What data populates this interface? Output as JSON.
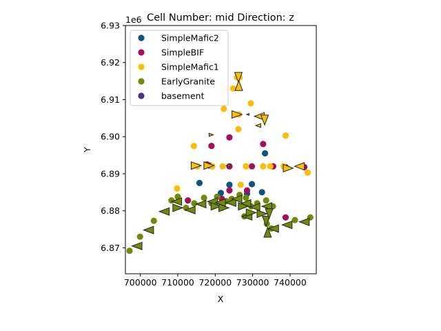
{
  "chart_data": {
    "type": "scatter",
    "title": "Cell Number: mid Direction: z",
    "xlabel": "X",
    "ylabel": "Y",
    "offset_text": "1e6",
    "xlim": [
      696000,
      747000
    ],
    "ylim": [
      6.863,
      6.93
    ],
    "xticks": [
      700000,
      710000,
      720000,
      730000,
      740000
    ],
    "xtick_labels": [
      "700000",
      "710000",
      "720000",
      "730000",
      "740000"
    ],
    "yticks": [
      6.87,
      6.88,
      6.89,
      6.9,
      6.91,
      6.92,
      6.93
    ],
    "ytick_labels": [
      "6.87",
      "6.88",
      "6.89",
      "6.90",
      "6.91",
      "6.92",
      "6.93"
    ],
    "grid": false,
    "legend_position": "upper-left",
    "series": [
      {
        "name": "SimpleMafic2",
        "color": "#0d5380",
        "points": [
          [
            715800,
            6.8875
          ],
          [
            723800,
            6.887
          ],
          [
            729800,
            6.8872
          ],
          [
            732500,
            6.885
          ],
          [
            733300,
            6.8955
          ],
          [
            721500,
            6.8848
          ],
          [
            728500,
            6.8846
          ],
          [
            718500,
            6.8922
          ]
        ]
      },
      {
        "name": "SimpleBIF",
        "color": "#a3105a",
        "points": [
          [
            712700,
            6.8828
          ],
          [
            717800,
            6.8925
          ],
          [
            719000,
            6.8975
          ],
          [
            723800,
            6.8998
          ],
          [
            723800,
            6.8855
          ],
          [
            728500,
            6.8855
          ],
          [
            729800,
            6.892
          ],
          [
            735500,
            6.892
          ],
          [
            738800,
            6.8918
          ],
          [
            738800,
            6.8782
          ],
          [
            743800,
            6.8918
          ],
          [
            732800,
            6.898
          ],
          [
            723800,
            6.892
          ],
          [
            721800,
            6.8832
          ]
        ]
      },
      {
        "name": "SimpleMafic1",
        "color": "#fbbd07",
        "points": [
          [
            709800,
            6.886
          ],
          [
            714300,
            6.8975
          ],
          [
            715200,
            6.892
          ],
          [
            719200,
            6.892
          ],
          [
            722000,
            6.892
          ],
          [
            722300,
            6.9075
          ],
          [
            724800,
            6.913
          ],
          [
            725800,
            6.916
          ],
          [
            726200,
            6.902
          ],
          [
            726300,
            6.906
          ],
          [
            726800,
            6.887
          ],
          [
            728200,
            6.892
          ],
          [
            729500,
            6.909
          ],
          [
            732800,
            6.892
          ],
          [
            734700,
            6.892
          ],
          [
            738800,
            6.9003
          ],
          [
            744700,
            6.8903
          ],
          [
            726500,
            6.916
          ],
          [
            738300,
            6.892
          ]
        ]
      },
      {
        "name": "EarlyGranite",
        "color": "#728a0a",
        "points": [
          [
            697100,
            6.8692
          ],
          [
            699900,
            6.873
          ],
          [
            703600,
            6.8773
          ],
          [
            708300,
            6.8828
          ],
          [
            710000,
            6.8838
          ],
          [
            712200,
            6.8808
          ],
          [
            714400,
            6.882
          ],
          [
            717000,
            6.8835
          ],
          [
            719000,
            6.882
          ],
          [
            720500,
            6.8838
          ],
          [
            721700,
            6.8808
          ],
          [
            723000,
            6.8826
          ],
          [
            724400,
            6.8832
          ],
          [
            726500,
            6.8843
          ],
          [
            728200,
            6.8835
          ],
          [
            729600,
            6.8812
          ],
          [
            731200,
            6.882
          ],
          [
            733600,
            6.8828
          ],
          [
            735400,
            6.8812
          ],
          [
            741300,
            6.8775
          ],
          [
            745400,
            6.8782
          ],
          [
            727800,
            6.8785
          ],
          [
            733800,
            6.8765
          ],
          [
            735000,
            6.8752
          ]
        ]
      },
      {
        "name": "basement",
        "color": "#4a3488",
        "points": []
      }
    ],
    "arrows": [
      {
        "x": 699100,
        "y": 6.8705,
        "dir": "left",
        "size": 12
      },
      {
        "x": 702200,
        "y": 6.8748,
        "dir": "left",
        "size": 12
      },
      {
        "x": 706400,
        "y": 6.8798,
        "dir": "left",
        "size": 12
      },
      {
        "x": 709700,
        "y": 6.8825,
        "dir": "left",
        "size": 12
      },
      {
        "x": 710000,
        "y": 6.8808,
        "dir": "right",
        "size": 12
      },
      {
        "x": 713300,
        "y": 6.8802,
        "dir": "left",
        "size": 12
      },
      {
        "x": 716200,
        "y": 6.8818,
        "dir": "left",
        "size": 12
      },
      {
        "x": 719300,
        "y": 6.8825,
        "dir": "left",
        "size": 12
      },
      {
        "x": 720200,
        "y": 6.8812,
        "dir": "right",
        "size": 12
      },
      {
        "x": 721400,
        "y": 6.8822,
        "dir": "left",
        "size": 12
      },
      {
        "x": 722300,
        "y": 6.8808,
        "dir": "right",
        "size": 12
      },
      {
        "x": 724200,
        "y": 6.8822,
        "dir": "left",
        "size": 12
      },
      {
        "x": 725800,
        "y": 6.8832,
        "dir": "left",
        "size": 12
      },
      {
        "x": 727500,
        "y": 6.8812,
        "dir": "right",
        "size": 12
      },
      {
        "x": 728200,
        "y": 6.882,
        "dir": "left",
        "size": 12
      },
      {
        "x": 728500,
        "y": 6.8785,
        "dir": "left",
        "size": 12
      },
      {
        "x": 729600,
        "y": 6.8795,
        "dir": "right",
        "size": 12
      },
      {
        "x": 730600,
        "y": 6.881,
        "dir": "left",
        "size": 12
      },
      {
        "x": 732500,
        "y": 6.8792,
        "dir": "right",
        "size": 12
      },
      {
        "x": 733800,
        "y": 6.8812,
        "dir": "left",
        "size": 12
      },
      {
        "x": 733600,
        "y": 6.8772,
        "dir": "down",
        "size": 12
      },
      {
        "x": 734000,
        "y": 6.8742,
        "dir": "up",
        "size": 12
      },
      {
        "x": 734400,
        "y": 6.8792,
        "dir": "down",
        "size": 12
      },
      {
        "x": 735600,
        "y": 6.8752,
        "dir": "left",
        "size": 12
      },
      {
        "x": 739200,
        "y": 6.8762,
        "dir": "left",
        "size": 12
      },
      {
        "x": 743800,
        "y": 6.877,
        "dir": "left",
        "size": 12
      },
      {
        "x": 714900,
        "y": 6.8922,
        "dir": "right",
        "size": 12
      },
      {
        "x": 718300,
        "y": 6.8922,
        "dir": "right",
        "size": 12
      },
      {
        "x": 723400,
        "y": 6.8922,
        "dir": "left",
        "size": 4
      },
      {
        "x": 726200,
        "y": 6.916,
        "dir": "down",
        "size": 12
      },
      {
        "x": 726300,
        "y": 6.9138,
        "dir": "up",
        "size": 12
      },
      {
        "x": 725800,
        "y": 6.906,
        "dir": "right",
        "size": 12
      },
      {
        "x": 728700,
        "y": 6.906,
        "dir": "left",
        "size": 3
      },
      {
        "x": 731800,
        "y": 6.9055,
        "dir": "left",
        "size": 12
      },
      {
        "x": 733200,
        "y": 6.9045,
        "dir": "down",
        "size": 12
      },
      {
        "x": 731500,
        "y": 6.903,
        "dir": "left",
        "size": 6
      },
      {
        "x": 718900,
        "y": 6.9005,
        "dir": "right",
        "size": 5
      },
      {
        "x": 739500,
        "y": 6.8915,
        "dir": "right",
        "size": 12
      },
      {
        "x": 742500,
        "y": 6.892,
        "dir": "left",
        "size": 12
      }
    ]
  }
}
